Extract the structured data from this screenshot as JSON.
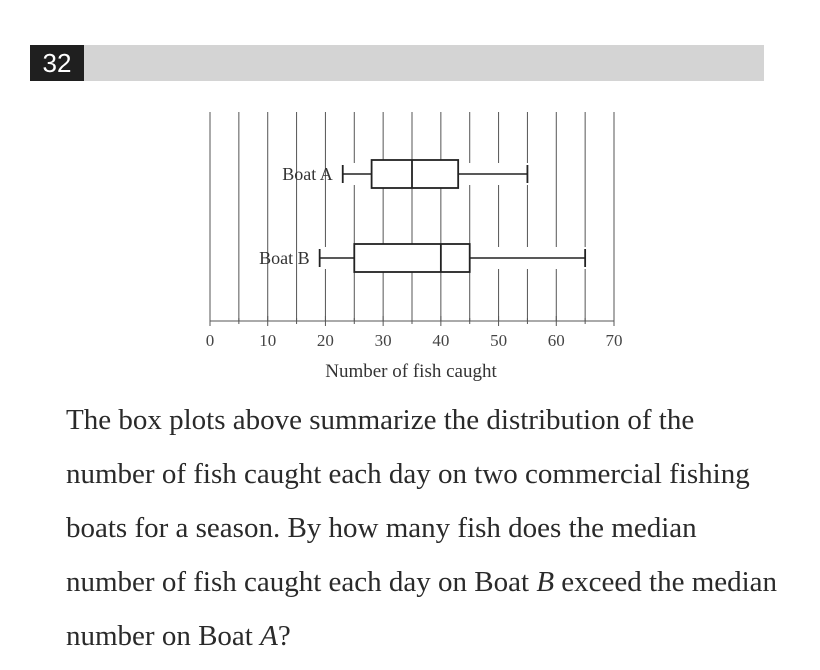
{
  "question_number": "32",
  "question": {
    "part1": "The box plots above summarize the distribution of the number of fish caught each day on two commercial fishing boats for a season. By how many fish does the median number of fish caught each day on Boat ",
    "var_b": "B",
    "part2": " exceed the median number on Boat ",
    "var_a": "A",
    "part3": "?"
  },
  "chart_data": {
    "type": "boxplot",
    "xlabel": "Number of fish caught",
    "xlim": [
      0,
      70
    ],
    "major_ticks": [
      0,
      10,
      20,
      30,
      40,
      50,
      60,
      70
    ],
    "tick_labels": [
      "0",
      "10",
      "20",
      "30",
      "40",
      "50",
      "60",
      "70"
    ],
    "gridline_step": 5,
    "grid": true,
    "series": [
      {
        "name": "Boat A",
        "min": 23,
        "q1": 28,
        "median": 35,
        "q3": 43,
        "max": 55
      },
      {
        "name": "Boat B",
        "min": 19,
        "q1": 25,
        "median": 40,
        "q3": 45,
        "max": 65
      }
    ]
  }
}
